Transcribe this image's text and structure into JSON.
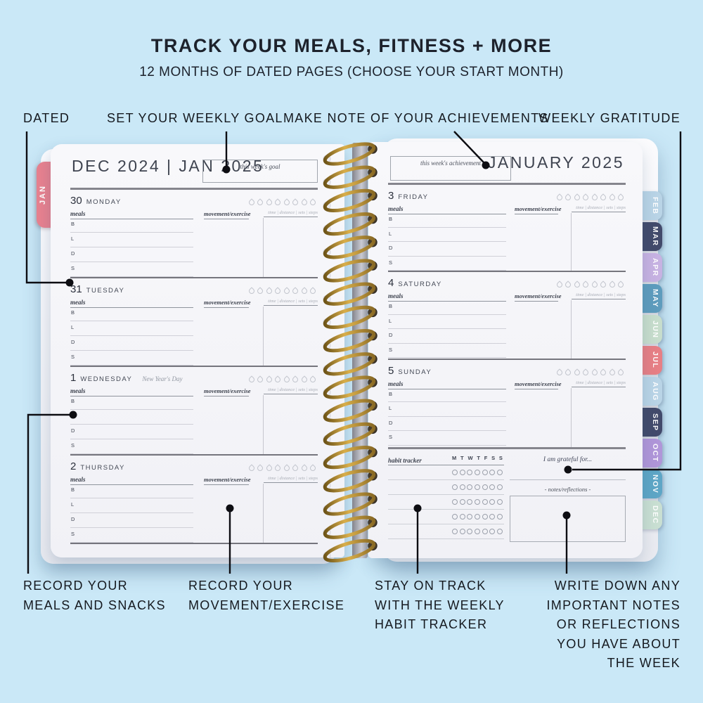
{
  "header": {
    "title": "TRACK YOUR MEALS, FITNESS + MORE",
    "subtitle": "12 MONTHS OF DATED PAGES (CHOOSE YOUR START MONTH)"
  },
  "callouts": {
    "top": [
      {
        "label": "DATED"
      },
      {
        "label": "SET YOUR WEEKLY GOAL"
      },
      {
        "label": "MAKE NOTE OF YOUR ACHIEVEMENTS"
      },
      {
        "label": "WEEKLY GRATITUDE"
      }
    ],
    "bottom": [
      {
        "label": "RECORD YOUR MEALS AND SNACKS"
      },
      {
        "label": "RECORD YOUR MOVEMENT/EXERCISE"
      },
      {
        "label": "STAY ON TRACK WITH THE WEEKLY HABIT TRACKER"
      },
      {
        "label": "WRITE DOWN ANY IMPORTANT NOTES OR REFLECTIONS YOU HAVE ABOUT THE WEEK"
      }
    ]
  },
  "planner": {
    "left_page": {
      "header": "DEC 2024 | JAN 2025",
      "goal_box_label": "this week's goal",
      "month_tab": {
        "label": "JAN",
        "color": "#e8818f"
      },
      "days": [
        {
          "date": "30",
          "weekday": "MONDAY",
          "holiday": ""
        },
        {
          "date": "31",
          "weekday": "TUESDAY",
          "holiday": ""
        },
        {
          "date": "1",
          "weekday": "WEDNESDAY",
          "holiday": "New Year's Day"
        },
        {
          "date": "2",
          "weekday": "THURSDAY",
          "holiday": ""
        }
      ]
    },
    "right_page": {
      "header": "JANUARY 2025",
      "achievement_box_label": "this week's achievement",
      "days": [
        {
          "date": "3",
          "weekday": "FRIDAY",
          "holiday": ""
        },
        {
          "date": "4",
          "weekday": "SATURDAY",
          "holiday": ""
        },
        {
          "date": "5",
          "weekday": "SUNDAY",
          "holiday": ""
        }
      ],
      "habit_tracker": {
        "label": "habit tracker",
        "day_letters": [
          "M",
          "T",
          "W",
          "T",
          "F",
          "S",
          "S"
        ],
        "rows": 5,
        "gratitude_label": "I am grateful for...",
        "notes_label": "-  notes/reflections  -"
      }
    },
    "day_section": {
      "meals_label": "meals",
      "movement_label": "movement/exercise",
      "metrics_label": "time | distance | sets | steps",
      "meal_rows": [
        "B",
        "L",
        "D",
        "S"
      ],
      "droplets_per_day": 8
    },
    "month_tabs": [
      {
        "label": "FEB",
        "color": "#b9d4e6"
      },
      {
        "label": "MAR",
        "color": "#424a6b"
      },
      {
        "label": "APR",
        "color": "#c7b2e2"
      },
      {
        "label": "MAY",
        "color": "#5e9cbd"
      },
      {
        "label": "JUN",
        "color": "#c7ddcc"
      },
      {
        "label": "JUL",
        "color": "#e77f85"
      },
      {
        "label": "AUG",
        "color": "#b9d4e6"
      },
      {
        "label": "SEP",
        "color": "#424a6b"
      },
      {
        "label": "OCT",
        "color": "#b096d9"
      },
      {
        "label": "NOV",
        "color": "#5ea6c6"
      },
      {
        "label": "DEC",
        "color": "#c9dfd2"
      }
    ],
    "spiral_color": "#a9822e"
  },
  "colors": {
    "background": "#cae8f7",
    "text": "#1d222c",
    "page": "#f6f6f9"
  }
}
